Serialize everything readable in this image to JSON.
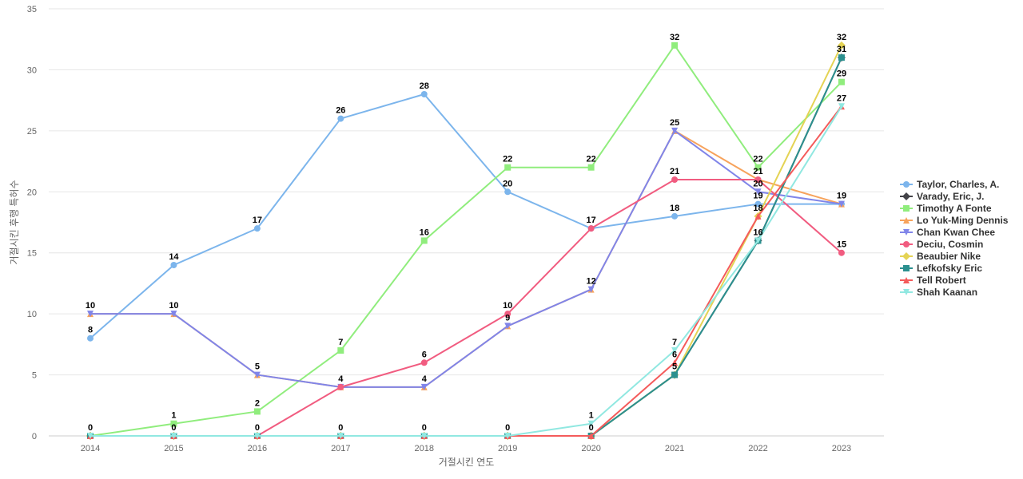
{
  "chart_data": {
    "type": "line",
    "title": "",
    "xlabel": "거절시킨 연도",
    "ylabel": "거절시킨 후행 특허수",
    "x": [
      "2014",
      "2015",
      "2016",
      "2017",
      "2018",
      "2019",
      "2020",
      "2021",
      "2022",
      "2023"
    ],
    "ylim": [
      0,
      35
    ],
    "yticks": [
      0,
      5,
      10,
      15,
      20,
      25,
      30,
      35
    ],
    "grid": true,
    "legend_position": "right",
    "series": [
      {
        "name": "Taylor, Charles, A.",
        "color": "#7cb5ec",
        "marker": "circle",
        "values": [
          8,
          14,
          17,
          26,
          28,
          20,
          17,
          18,
          19,
          19
        ]
      },
      {
        "name": "Varady, Eric, J.",
        "color": "#434348",
        "marker": "diamond",
        "values": [
          0,
          0,
          0,
          0,
          0,
          0,
          0,
          5,
          16,
          31
        ]
      },
      {
        "name": "Timothy A Fonte",
        "color": "#90ed7d",
        "marker": "square",
        "values": [
          0,
          1,
          2,
          7,
          16,
          22,
          22,
          32,
          22,
          29
        ]
      },
      {
        "name": "Lo Yuk-Ming Dennis",
        "color": "#f7a35c",
        "marker": "triangle",
        "values": [
          10,
          10,
          5,
          4,
          4,
          9,
          12,
          25,
          21,
          19
        ]
      },
      {
        "name": "Chan Kwan Chee",
        "color": "#8085e9",
        "marker": "triangle-down",
        "values": [
          10,
          10,
          5,
          4,
          4,
          9,
          12,
          25,
          20,
          19
        ]
      },
      {
        "name": "Deciu, Cosmin",
        "color": "#f15c80",
        "marker": "circle",
        "values": [
          0,
          0,
          0,
          4,
          6,
          10,
          17,
          21,
          21,
          15
        ]
      },
      {
        "name": "Beaubier Nike",
        "color": "#e4d354",
        "marker": "diamond",
        "values": [
          0,
          0,
          0,
          0,
          0,
          0,
          0,
          5,
          18,
          32
        ]
      },
      {
        "name": "Lefkofsky Eric",
        "color": "#2b908f",
        "marker": "square",
        "values": [
          0,
          0,
          0,
          0,
          0,
          0,
          0,
          5,
          16,
          31
        ]
      },
      {
        "name": "Tell Robert",
        "color": "#f45b5b",
        "marker": "triangle",
        "values": [
          0,
          0,
          0,
          0,
          0,
          0,
          0,
          6,
          18,
          27
        ]
      },
      {
        "name": "Shah Kaanan",
        "color": "#91e8e1",
        "marker": "triangle-down",
        "values": [
          0,
          0,
          0,
          0,
          0,
          0,
          1,
          7,
          16,
          27
        ]
      }
    ],
    "data_labels": [
      {
        "x": "2014",
        "y": 8,
        "text": "8"
      },
      {
        "x": "2014",
        "y": 10,
        "text": "10"
      },
      {
        "x": "2014",
        "y": 0,
        "text": "0"
      },
      {
        "x": "2015",
        "y": 14,
        "text": "14"
      },
      {
        "x": "2015",
        "y": 10,
        "text": "10"
      },
      {
        "x": "2015",
        "y": 1,
        "text": "1"
      },
      {
        "x": "2015",
        "y": 0,
        "text": "0"
      },
      {
        "x": "2016",
        "y": 17,
        "text": "17"
      },
      {
        "x": "2016",
        "y": 5,
        "text": "5"
      },
      {
        "x": "2016",
        "y": 2,
        "text": "2"
      },
      {
        "x": "2016",
        "y": 0,
        "text": "0"
      },
      {
        "x": "2017",
        "y": 26,
        "text": "26"
      },
      {
        "x": "2017",
        "y": 7,
        "text": "7"
      },
      {
        "x": "2017",
        "y": 4,
        "text": "4"
      },
      {
        "x": "2017",
        "y": 0,
        "text": "0"
      },
      {
        "x": "2018",
        "y": 28,
        "text": "28"
      },
      {
        "x": "2018",
        "y": 16,
        "text": "16"
      },
      {
        "x": "2018",
        "y": 6,
        "text": "6"
      },
      {
        "x": "2018",
        "y": 4,
        "text": "4"
      },
      {
        "x": "2018",
        "y": 0,
        "text": "0"
      },
      {
        "x": "2019",
        "y": 22,
        "text": "22"
      },
      {
        "x": "2019",
        "y": 20,
        "text": "20"
      },
      {
        "x": "2019",
        "y": 10,
        "text": "10"
      },
      {
        "x": "2019",
        "y": 9,
        "text": "9"
      },
      {
        "x": "2019",
        "y": 0,
        "text": "0"
      },
      {
        "x": "2020",
        "y": 22,
        "text": "22"
      },
      {
        "x": "2020",
        "y": 17,
        "text": "17"
      },
      {
        "x": "2020",
        "y": 12,
        "text": "12"
      },
      {
        "x": "2020",
        "y": 1,
        "text": "1"
      },
      {
        "x": "2020",
        "y": 0,
        "text": "0"
      },
      {
        "x": "2021",
        "y": 32,
        "text": "32"
      },
      {
        "x": "2021",
        "y": 25,
        "text": "25"
      },
      {
        "x": "2021",
        "y": 21,
        "text": "21"
      },
      {
        "x": "2021",
        "y": 18,
        "text": "18"
      },
      {
        "x": "2021",
        "y": 7,
        "text": "7"
      },
      {
        "x": "2021",
        "y": 6,
        "text": "6"
      },
      {
        "x": "2021",
        "y": 5,
        "text": "5"
      },
      {
        "x": "2022",
        "y": 22,
        "text": "22"
      },
      {
        "x": "2022",
        "y": 21,
        "text": "21"
      },
      {
        "x": "2022",
        "y": 20,
        "text": "20"
      },
      {
        "x": "2022",
        "y": 19,
        "text": "19"
      },
      {
        "x": "2022",
        "y": 18,
        "text": "18"
      },
      {
        "x": "2022",
        "y": 16,
        "text": "16"
      },
      {
        "x": "2023",
        "y": 32,
        "text": "32"
      },
      {
        "x": "2023",
        "y": 31,
        "text": "31"
      },
      {
        "x": "2023",
        "y": 29,
        "text": "29"
      },
      {
        "x": "2023",
        "y": 27,
        "text": "27"
      },
      {
        "x": "2023",
        "y": 19,
        "text": "19"
      },
      {
        "x": "2023",
        "y": 15,
        "text": "15"
      }
    ]
  }
}
